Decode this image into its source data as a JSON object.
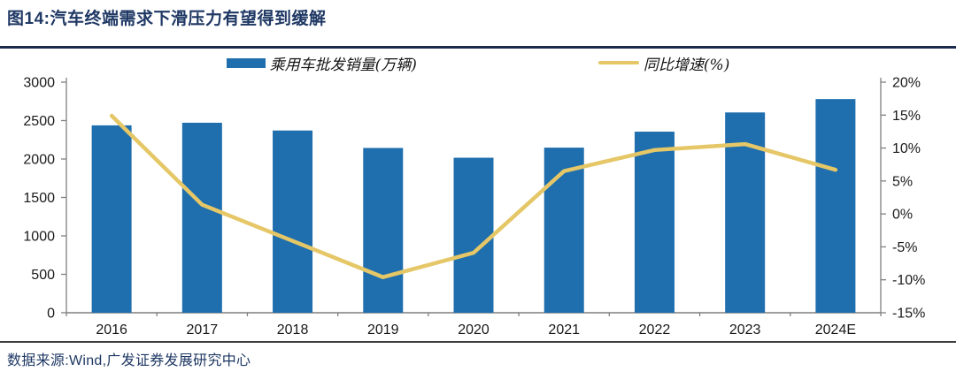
{
  "title": "图14:汽车终端需求下滑压力有望得到缓解",
  "source": "数据来源:Wind,广发证券发展研究中心",
  "colors": {
    "bar": "#1f6ead",
    "line": "#e5c767",
    "navy": "#1f3864",
    "axis": "#7f7f7f",
    "tick_text": "#1a1a1a",
    "rule_top": "#1b2b4d",
    "rule_bottom": "#3c3c3c"
  },
  "legend": [
    {
      "label": "乘用车批发销量(万辆)",
      "type": "bar"
    },
    {
      "label": "同比增速(%)",
      "type": "line"
    }
  ],
  "chart_data": {
    "type": "bar",
    "subtype": "bar+line dual-axis",
    "categories": [
      "2016",
      "2017",
      "2018",
      "2019",
      "2020",
      "2021",
      "2022",
      "2023",
      "2024E"
    ],
    "series": [
      {
        "name": "乘用车批发销量(万辆)",
        "type": "bar",
        "axis": "left",
        "values": [
          2438,
          2472,
          2371,
          2144,
          2017,
          2148,
          2356,
          2606,
          2780
        ]
      },
      {
        "name": "同比增速(%)",
        "type": "line",
        "axis": "right",
        "values": [
          14.9,
          1.4,
          -4.1,
          -9.6,
          -5.9,
          6.5,
          9.7,
          10.6,
          6.7
        ]
      }
    ],
    "left_axis": {
      "min": 0,
      "max": 3000,
      "step": 500,
      "ticks": [
        "0",
        "500",
        "1000",
        "1500",
        "2000",
        "2500",
        "3000"
      ]
    },
    "right_axis": {
      "min": -15,
      "max": 20,
      "step": 5,
      "suffix": "%",
      "ticks": [
        "-15%",
        "-10%",
        "-5%",
        "0%",
        "5%",
        "10%",
        "15%",
        "20%"
      ]
    },
    "grid": false,
    "legend_position": "top-center",
    "title": "图14:汽车终端需求下滑压力有望得到缓解",
    "xlabel": "",
    "ylabel_left": "万辆",
    "ylabel_right": "%"
  }
}
